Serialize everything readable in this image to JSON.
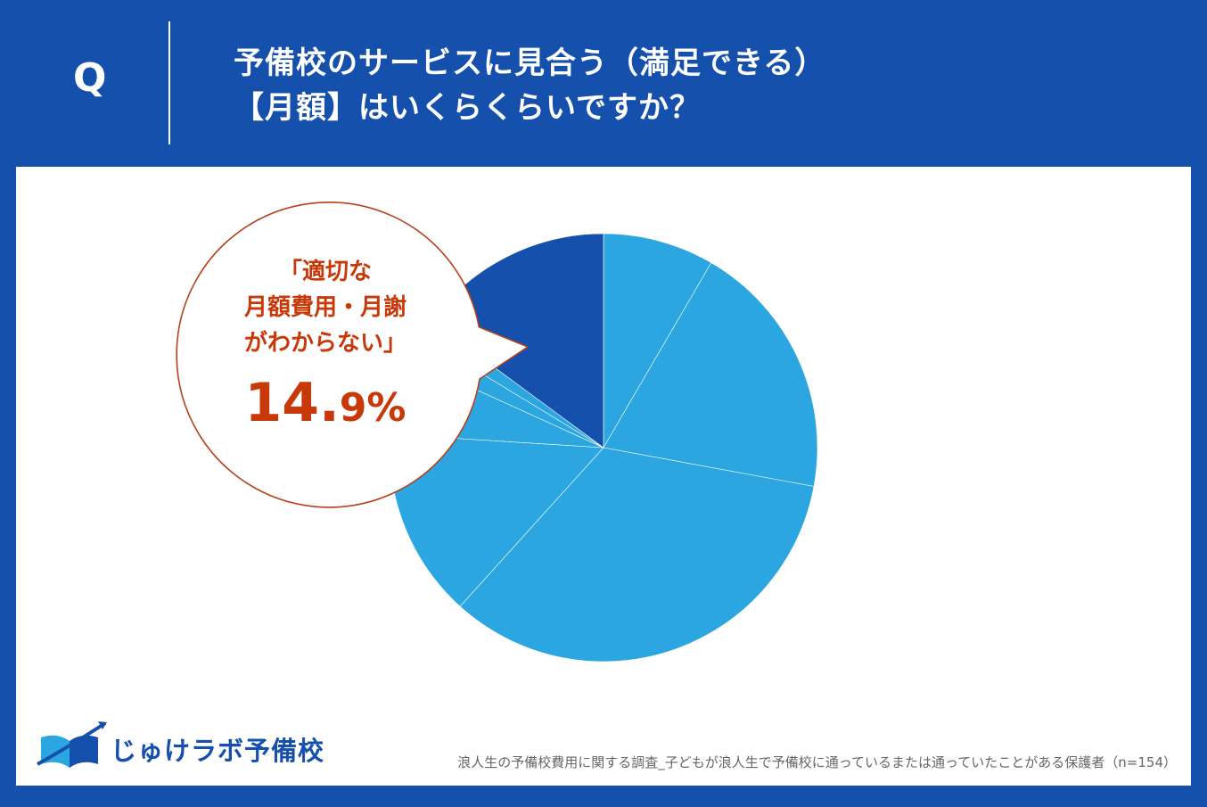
{
  "header": {
    "q_label": "Q",
    "question_line1": "予備校のサービスに見合う（満足できる）",
    "question_line2": "【月額】はいくらくらいですか？"
  },
  "colors": {
    "header_bg": "#1650ad",
    "slice_light": "#2ca6e0",
    "slice_dark": "#1650ad",
    "callout_red": "#c8390a",
    "bubble_border": "#b5401a"
  },
  "callout": {
    "line1": "「適切な",
    "line2": "月額費用・月謝",
    "line3": "がわからない」",
    "percent_number": "14.",
    "percent_decimal": "9",
    "percent_sign": "%"
  },
  "chart_data": {
    "type": "pie",
    "title": "予備校のサービスに見合う（満足できる）【月額】はいくらくらいですか？",
    "start": "12 o'clock, clockwise",
    "slices": [
      {
        "label": "",
        "value": 8.4,
        "highlight": false
      },
      {
        "label": "",
        "value": 19.5,
        "highlight": false
      },
      {
        "label": "",
        "value": 33.8,
        "highlight": false
      },
      {
        "label": "",
        "value": 14.3,
        "highlight": false
      },
      {
        "label": "",
        "value": 5.8,
        "highlight": false
      },
      {
        "label": "",
        "value": 1.9,
        "highlight": false
      },
      {
        "label": "",
        "value": 1.4,
        "highlight": false
      },
      {
        "label": "適切な月額費用・月謝がわからない",
        "value": 14.9,
        "highlight": true
      }
    ]
  },
  "footer": {
    "logo_text": "じゅけラボ予備校",
    "source": "浪人生の予備校費用に関する調査_子どもが浪人生で予備校に通っているまたは通っていたことがある保護者（n=154）"
  }
}
